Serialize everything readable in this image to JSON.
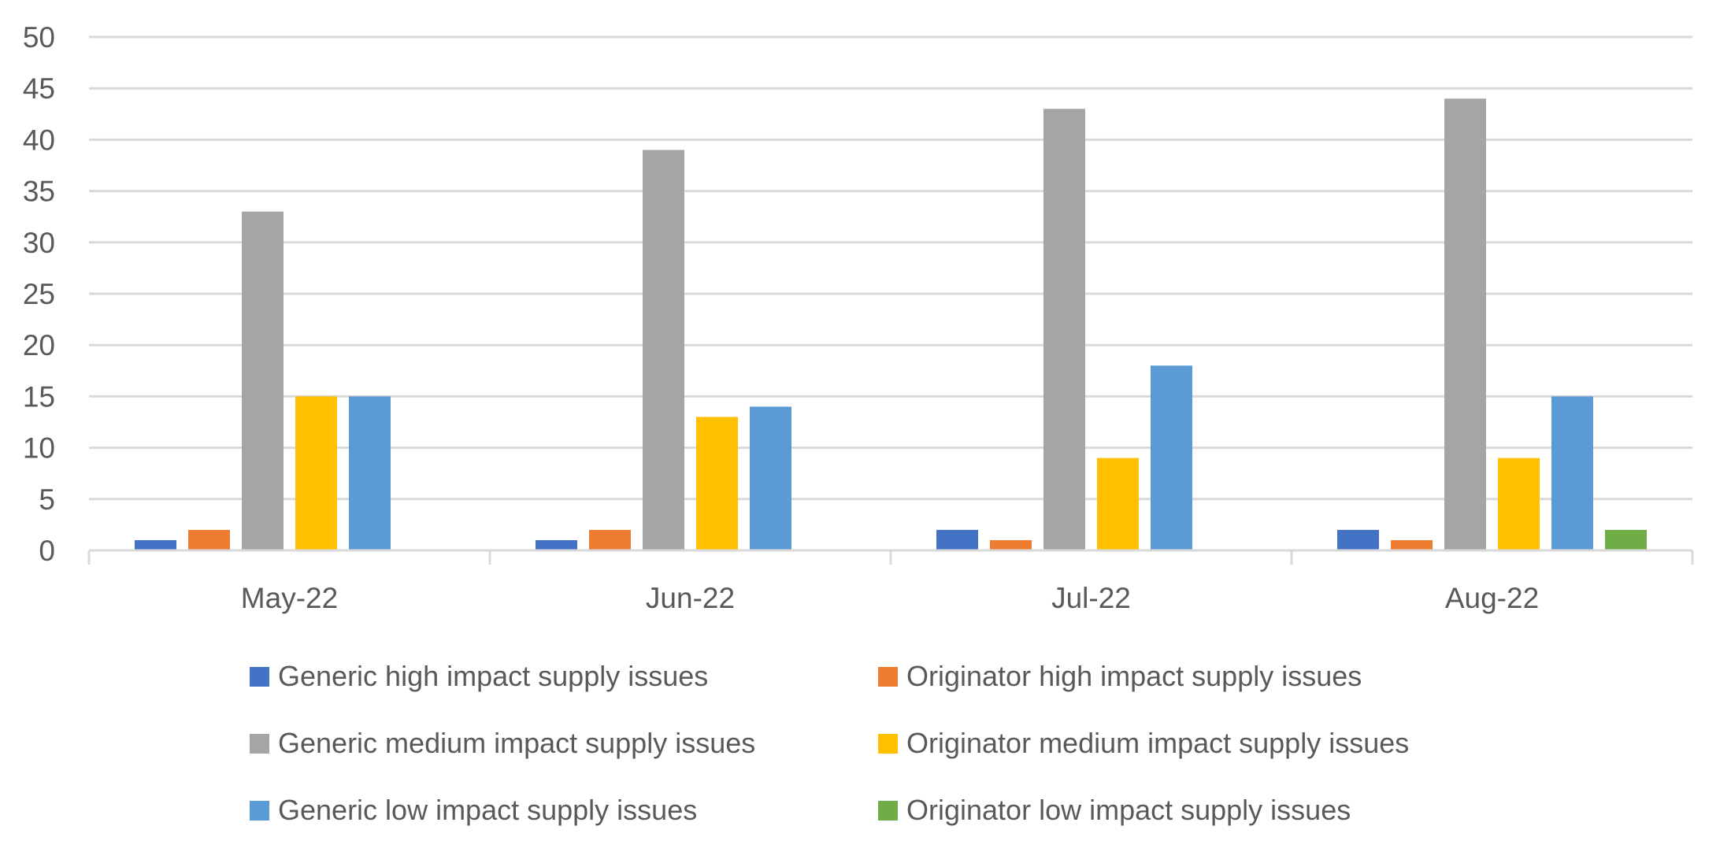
{
  "chart_data": {
    "type": "bar",
    "title": "",
    "xlabel": "",
    "ylabel": "",
    "categories": [
      "May-22",
      "Jun-22",
      "Jul-22",
      "Aug-22"
    ],
    "ylim": [
      0,
      50
    ],
    "ytick_step": 5,
    "yticks": [
      "0",
      "5",
      "10",
      "15",
      "20",
      "25",
      "30",
      "35",
      "40",
      "45",
      "50"
    ],
    "grid": true,
    "legend_position": "bottom",
    "series": [
      {
        "name": "Generic high impact supply issues",
        "color": "#4472c4",
        "values": [
          1,
          1,
          2,
          2
        ]
      },
      {
        "name": "Originator high impact supply issues",
        "color": "#ed7d31",
        "values": [
          2,
          2,
          1,
          1
        ]
      },
      {
        "name": "Generic medium impact supply issues",
        "color": "#a5a5a5",
        "values": [
          33,
          39,
          43,
          44
        ]
      },
      {
        "name": "Originator medium impact supply issues",
        "color": "#ffc000",
        "values": [
          15,
          13,
          9,
          9
        ]
      },
      {
        "name": "Generic low impact supply issues",
        "color": "#5b9bd5",
        "values": [
          15,
          14,
          18,
          15
        ]
      },
      {
        "name": "Originator low impact supply issues",
        "color": "#70ad47",
        "values": [
          0,
          0,
          0,
          2
        ]
      }
    ],
    "legend_order": [
      0,
      1,
      2,
      3,
      4,
      5
    ]
  },
  "colors": {
    "text": "#595959",
    "grid": "#d9d9d9"
  }
}
